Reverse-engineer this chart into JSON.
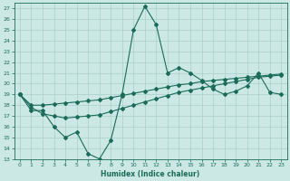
{
  "xlabel": "Humidex (Indice chaleur)",
  "background_color": "#cce8e4",
  "grid_color": "#aacfcb",
  "line_color": "#1a6b5a",
  "xlim": [
    -0.5,
    23.5
  ],
  "ylim": [
    13,
    27.5
  ],
  "yticks": [
    13,
    14,
    15,
    16,
    17,
    18,
    19,
    20,
    21,
    22,
    23,
    24,
    25,
    26,
    27
  ],
  "xticks": [
    0,
    1,
    2,
    3,
    4,
    5,
    6,
    7,
    8,
    9,
    10,
    11,
    12,
    13,
    14,
    15,
    16,
    17,
    18,
    19,
    20,
    21,
    22,
    23
  ],
  "series1": [
    19.0,
    17.5,
    17.5,
    16.0,
    15.0,
    15.5,
    13.5,
    13.0,
    14.7,
    19.0,
    25.0,
    27.2,
    25.5,
    21.0,
    21.5,
    21.0,
    20.3,
    19.5,
    19.0,
    19.3,
    19.8,
    21.0,
    19.2,
    19.0
  ],
  "series2": [
    19.0,
    18.0,
    18.0,
    18.1,
    18.2,
    18.3,
    18.4,
    18.5,
    18.7,
    18.9,
    19.1,
    19.3,
    19.5,
    19.7,
    19.9,
    20.0,
    20.2,
    20.3,
    20.4,
    20.5,
    20.6,
    20.7,
    20.8,
    20.9
  ],
  "series3": [
    19.0,
    17.8,
    17.2,
    17.0,
    16.8,
    16.9,
    17.0,
    17.1,
    17.4,
    17.7,
    18.0,
    18.3,
    18.6,
    18.9,
    19.2,
    19.4,
    19.6,
    19.8,
    20.0,
    20.2,
    20.4,
    20.6,
    20.7,
    20.8
  ]
}
